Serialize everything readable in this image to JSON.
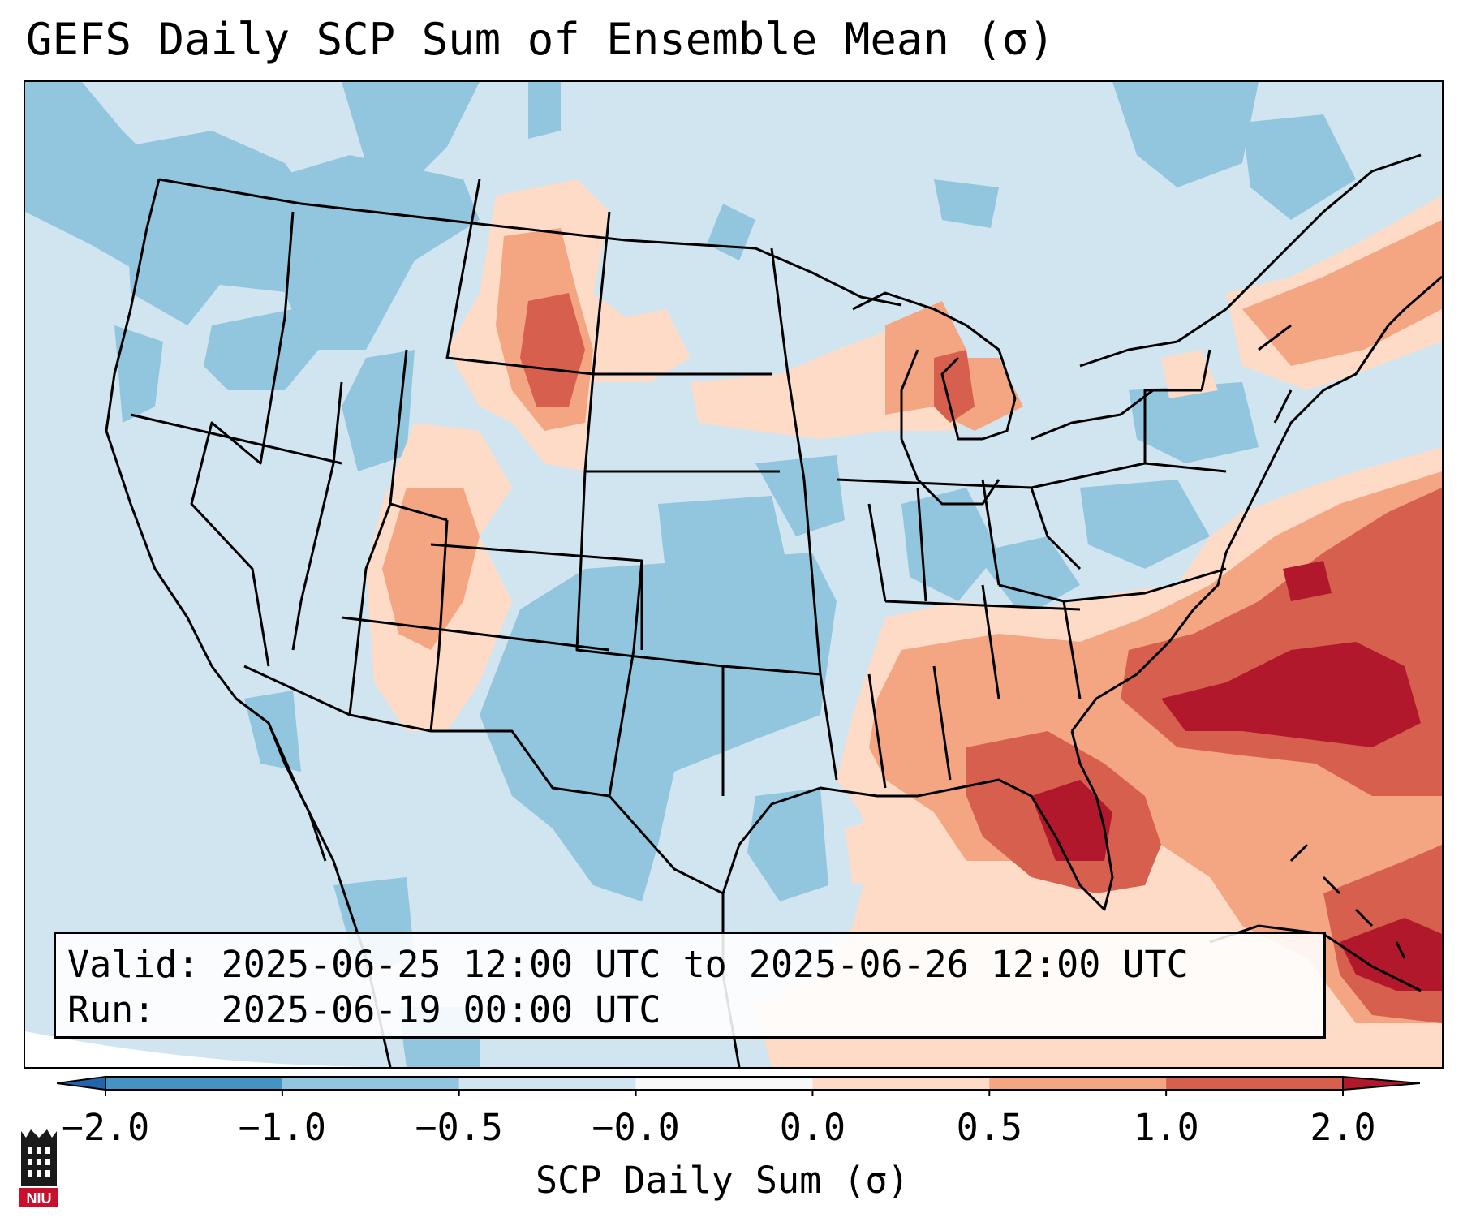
{
  "title": "GEFS Daily SCP Sum of Ensemble Mean (σ)",
  "info": {
    "valid_line": "Valid: 2025-06-25 12:00 UTC to 2025-06-26 12:00 UTC",
    "run_line": "Run:   2025-06-19 00:00 UTC"
  },
  "colorbar": {
    "label": "SCP Daily Sum (σ)",
    "ticks": [
      "−2.0",
      "−1.0",
      "−0.5",
      "−0.0",
      "0.0",
      "0.5",
      "1.0",
      "2.0"
    ],
    "colors": [
      "#4393c3",
      "#92c5de",
      "#d1e5f0",
      "#f7f7f7",
      "#fddbc7",
      "#f4a582",
      "#d6604d",
      "#b2182b"
    ],
    "under_color": "#2166ac",
    "over_color": "#b2182b"
  },
  "logo": {
    "text": "NIU",
    "colors": {
      "badge": "#c8102e",
      "tower": "#1a1a1a"
    }
  },
  "map": {
    "colors": {
      "neg2": "#4393c3",
      "neg1": "#92c5de",
      "neg05": "#d1e5f0",
      "pos0": "#fddbc7",
      "pos05": "#f4a582",
      "pos1": "#d6604d",
      "pos2": "#b2182b"
    }
  }
}
